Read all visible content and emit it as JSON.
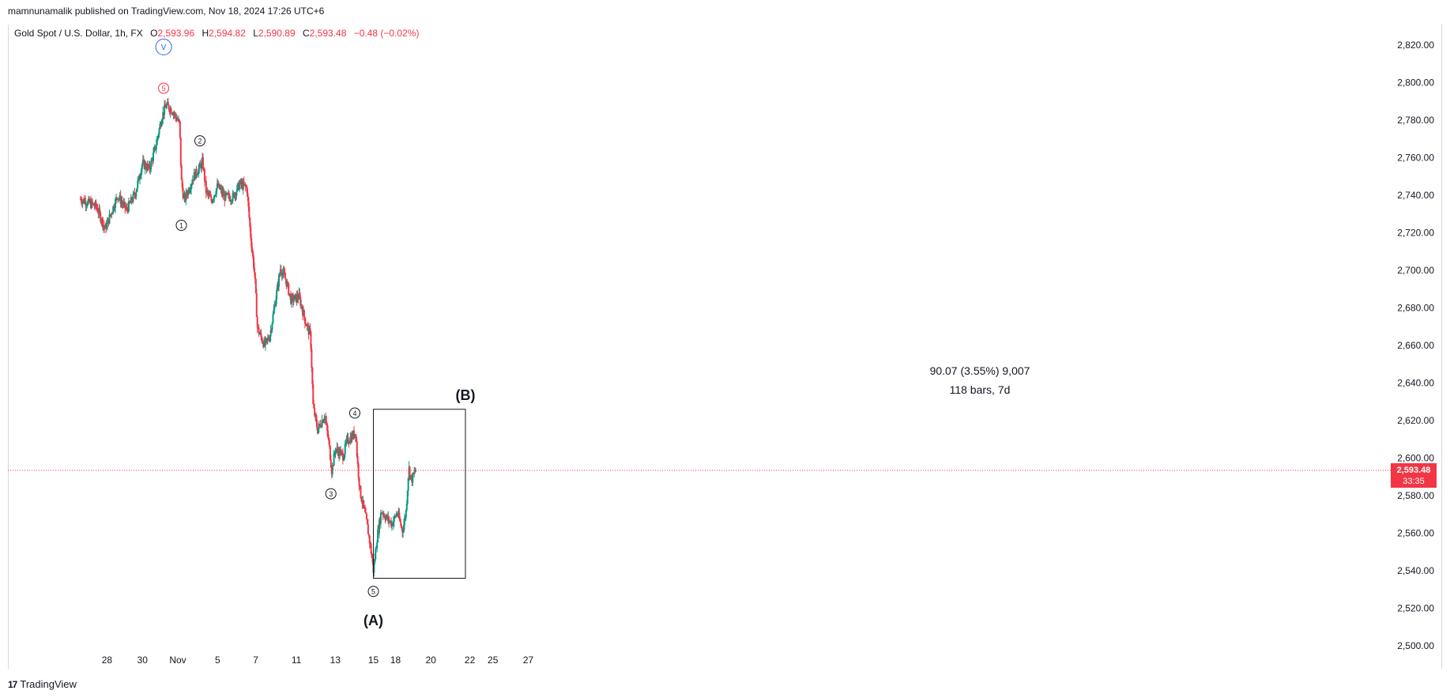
{
  "published": "mamnunamalik published on TradingView.com, Nov 18, 2024 17:26 UTC+6",
  "legend": {
    "symbol": "Gold Spot / U.S. Dollar, 1h, FX",
    "o_label": "O",
    "o": "2,593.96",
    "h_label": "H",
    "h": "2,594.82",
    "l_label": "L",
    "l": "2,590.89",
    "c_label": "C",
    "c": "2,593.48",
    "change": "−0.48 (−0.02%)"
  },
  "footer_brand": "TradingView",
  "colors": {
    "up": "#089981",
    "down": "#f23645",
    "price_line": "#f23645",
    "label_bg": "#f23645"
  },
  "chart_data": {
    "type": "candlestick",
    "interval": "1h",
    "ylim": [
      2490,
      2830
    ],
    "y_ticks": [
      "2,500.00",
      "2,520.00",
      "2,540.00",
      "2,560.00",
      "2,580.00",
      "2,600.00",
      "2,620.00",
      "2,640.00",
      "2,660.00",
      "2,680.00",
      "2,700.00",
      "2,720.00",
      "2,740.00",
      "2,760.00",
      "2,780.00",
      "2,800.00",
      "2,820.00"
    ],
    "x_ticks": [
      {
        "label": "28",
        "d": 1.0
      },
      {
        "label": "30",
        "d": 3.0
      },
      {
        "label": "Nov",
        "d": 5.0
      },
      {
        "label": "5",
        "d": 7.25
      },
      {
        "label": "7",
        "d": 9.4
      },
      {
        "label": "11",
        "d": 11.7
      },
      {
        "label": "13",
        "d": 13.9
      },
      {
        "label": "15",
        "d": 16.05
      },
      {
        "label": "18",
        "d": 17.3
      },
      {
        "label": "20",
        "d": 19.3
      },
      {
        "label": "22",
        "d": 21.5
      },
      {
        "label": "25",
        "d": 22.8
      },
      {
        "label": "27",
        "d": 24.8
      }
    ],
    "path_points": [
      [
        -0.5,
        2738
      ],
      [
        0.4,
        2734
      ],
      [
        0.9,
        2722
      ],
      [
        1.6,
        2740
      ],
      [
        2.1,
        2732
      ],
      [
        2.6,
        2741
      ],
      [
        3.0,
        2757
      ],
      [
        3.4,
        2754
      ],
      [
        3.75,
        2766
      ],
      [
        4.1,
        2782
      ],
      [
        4.35,
        2788
      ],
      [
        4.7,
        2785
      ],
      [
        5.1,
        2778
      ],
      [
        5.2,
        2748
      ],
      [
        5.35,
        2737
      ],
      [
        5.9,
        2750
      ],
      [
        6.25,
        2755
      ],
      [
        6.4,
        2758
      ],
      [
        6.6,
        2742
      ],
      [
        6.9,
        2737
      ],
      [
        7.25,
        2745
      ],
      [
        7.65,
        2739
      ],
      [
        8.1,
        2739
      ],
      [
        8.5,
        2746
      ],
      [
        8.9,
        2744
      ],
      [
        9.1,
        2720
      ],
      [
        9.35,
        2697
      ],
      [
        9.5,
        2669
      ],
      [
        9.9,
        2660
      ],
      [
        10.2,
        2665
      ],
      [
        10.45,
        2680
      ],
      [
        10.8,
        2701
      ],
      [
        11.1,
        2695
      ],
      [
        11.4,
        2684
      ],
      [
        11.85,
        2686
      ],
      [
        12.2,
        2673
      ],
      [
        12.5,
        2665
      ],
      [
        12.65,
        2627
      ],
      [
        12.9,
        2615
      ],
      [
        13.3,
        2623
      ],
      [
        13.55,
        2607
      ],
      [
        13.7,
        2593
      ],
      [
        13.9,
        2605
      ],
      [
        14.35,
        2601
      ],
      [
        14.55,
        2609
      ],
      [
        14.8,
        2611
      ],
      [
        15.05,
        2614
      ],
      [
        15.15,
        2598
      ],
      [
        15.3,
        2582
      ],
      [
        15.65,
        2567
      ],
      [
        15.9,
        2552
      ],
      [
        16.05,
        2540
      ],
      [
        16.25,
        2557
      ],
      [
        16.5,
        2572
      ],
      [
        16.8,
        2568
      ],
      [
        17.1,
        2565
      ],
      [
        17.4,
        2571
      ],
      [
        17.7,
        2561
      ],
      [
        17.9,
        2572
      ],
      [
        18.05,
        2595
      ],
      [
        18.2,
        2588
      ],
      [
        18.45,
        2594
      ]
    ],
    "last_price": "2,593.48",
    "countdown": "33:35",
    "wave_labels": [
      {
        "text": "V",
        "d": 4.2,
        "price": 2819,
        "color": "#2962ff"
      },
      {
        "text": "5",
        "d": 4.2,
        "price": 2797,
        "color": "#f23645"
      },
      {
        "text": "1",
        "d": 5.2,
        "price": 2724,
        "color": "#131722"
      },
      {
        "text": "2",
        "d": 6.25,
        "price": 2769,
        "color": "#131722"
      },
      {
        "text": "3",
        "d": 13.65,
        "price": 2581,
        "color": "#131722"
      },
      {
        "text": "4",
        "d": 15.0,
        "price": 2624,
        "color": "#131722"
      },
      {
        "text": "5",
        "d": 16.05,
        "price": 2529,
        "color": "#131722"
      }
    ],
    "corrective_labels": [
      {
        "text": "(A)",
        "d": 16.05,
        "price": 2513
      },
      {
        "text": "(B)",
        "d": 21.25,
        "price": 2633
      }
    ],
    "measure_box": {
      "d_start": 16.05,
      "d_end": 21.25,
      "price_low": 2536,
      "price_high": 2626,
      "line1": "90.07 (3.55%) 9,007",
      "line2": "118 bars, 7d"
    }
  }
}
